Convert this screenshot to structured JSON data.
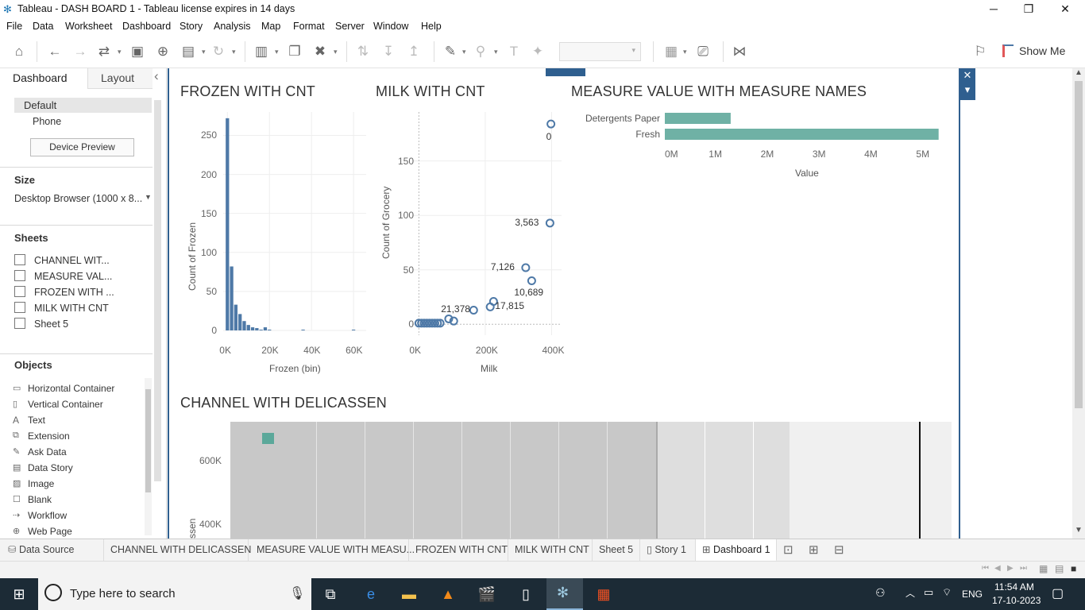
{
  "window": {
    "title": "Tableau - DASH BOARD 1 - Tableau license expires in 14 days",
    "min": "─",
    "max": "❐",
    "close": "✕"
  },
  "menu": [
    "File",
    "Data",
    "Worksheet",
    "Dashboard",
    "Story",
    "Analysis",
    "Map",
    "Format",
    "Server",
    "Window",
    "Help"
  ],
  "toolbar": {
    "show_me": "Show Me"
  },
  "left": {
    "tab_dashboard": "Dashboard",
    "tab_layout": "Layout",
    "collapse": "‹",
    "device_default": "Default",
    "device_phone": "Phone",
    "device_preview": "Device Preview",
    "size_title": "Size",
    "size_value": "Desktop Browser (1000 x 8...",
    "sheets_title": "Sheets",
    "sheets": [
      "CHANNEL WIT...",
      "MEASURE VAL...",
      "FROZEN WITH ...",
      "MILK WITH CNT",
      "Sheet 5"
    ],
    "objects_title": "Objects",
    "objects": [
      "Horizontal Container",
      "Vertical Container",
      "Text",
      "Extension",
      "Ask Data",
      "Data Story",
      "Image",
      "Blank",
      "Workflow",
      "Web Page"
    ]
  },
  "frozen": {
    "title": "FROZEN WITH CNT",
    "ylabel": "Count of Frozen",
    "xlabel": "Frozen (bin)",
    "yticks": [
      "250",
      "200",
      "150",
      "100",
      "50",
      "0"
    ],
    "xticks": [
      "0K",
      "20K",
      "40K",
      "60K"
    ]
  },
  "milk": {
    "title": "MILK WITH CNT",
    "ylabel": "Count of Grocery",
    "xlabel": "Milk",
    "yticks": [
      "150",
      "100",
      "50",
      "0"
    ],
    "xticks": [
      "0K",
      "200K",
      "400K"
    ],
    "labels": [
      "0",
      "3,563",
      "7,126",
      "10,689",
      "21,378",
      "17,815"
    ]
  },
  "measure": {
    "title": "MEASURE VALUE WITH MEASURE NAMES",
    "xlabel": "Value",
    "cats": [
      "Detergents Paper",
      "Fresh"
    ],
    "xticks": [
      "0M",
      "1M",
      "2M",
      "3M",
      "4M",
      "5M"
    ]
  },
  "channel": {
    "title": "CHANNEL WITH DELICASSEN",
    "ylabel": "ssen",
    "yticks": [
      "600K",
      "400K"
    ]
  },
  "chart_data": [
    {
      "type": "bar",
      "title": "FROZEN WITH CNT",
      "xlabel": "Frozen (bin)",
      "ylabel": "Count of Frozen",
      "x": [
        0,
        2000,
        4000,
        6000,
        8000,
        10000,
        12000,
        14000,
        16000,
        18000,
        20000,
        36000,
        60000
      ],
      "values": [
        272,
        82,
        33,
        21,
        12,
        7,
        4,
        3,
        1,
        4,
        1,
        1,
        1
      ],
      "ylim": [
        0,
        280
      ],
      "xlim": [
        -2000,
        66000
      ]
    },
    {
      "type": "scatter",
      "title": "MILK WITH CNT",
      "xlabel": "Milk",
      "ylabel": "Count of Grocery",
      "x": [
        0,
        8000,
        16000,
        24000,
        32000,
        40000,
        48000,
        56000,
        64000,
        90000,
        105000,
        165000,
        215000,
        225000,
        322000,
        340000,
        395000,
        398000
      ],
      "y": [
        1,
        1,
        1,
        1,
        1,
        1,
        1,
        1,
        1,
        5,
        3,
        13,
        16,
        21,
        52,
        40,
        93,
        184
      ],
      "point_labels": [
        {
          "x": 398000,
          "y": 184,
          "text": "0"
        },
        {
          "x": 395000,
          "y": 93,
          "text": "3,563"
        },
        {
          "x": 322000,
          "y": 52,
          "text": "7,126"
        },
        {
          "x": 340000,
          "y": 40,
          "text": "10,689"
        },
        {
          "x": 105000,
          "y": 3,
          "text": "21,378"
        },
        {
          "x": 225000,
          "y": 21,
          "text": "17,815"
        }
      ],
      "xlim": [
        -20000,
        430000
      ],
      "ylim": [
        -10,
        195
      ]
    },
    {
      "type": "bar",
      "title": "MEASURE VALUE WITH MEASURE NAMES",
      "orientation": "horizontal",
      "categories": [
        "Detergents Paper",
        "Fresh"
      ],
      "values": [
        1270000,
        5280000
      ],
      "xlabel": "Value",
      "xlim": [
        0,
        5300000
      ]
    }
  ],
  "tabs": {
    "datasource": "Data Source",
    "sheets": [
      "CHANNEL WITH DELICASSEN",
      "MEASURE VALUE WITH MEASU...",
      "FROZEN WITH CNT",
      "MILK WITH CNT",
      "Sheet 5"
    ],
    "story": "Story 1",
    "dashboard": "Dashboard 1"
  },
  "taskbar": {
    "search_placeholder": "Type here to search",
    "lang": "ENG",
    "time": "11:54 AM",
    "date": "17-10-2023"
  },
  "colors": {
    "frozen_bar": "#4e79a7",
    "teal": "#6fb1a5",
    "milk_point": "#4e79a7",
    "frame": "#2f5f8f"
  }
}
